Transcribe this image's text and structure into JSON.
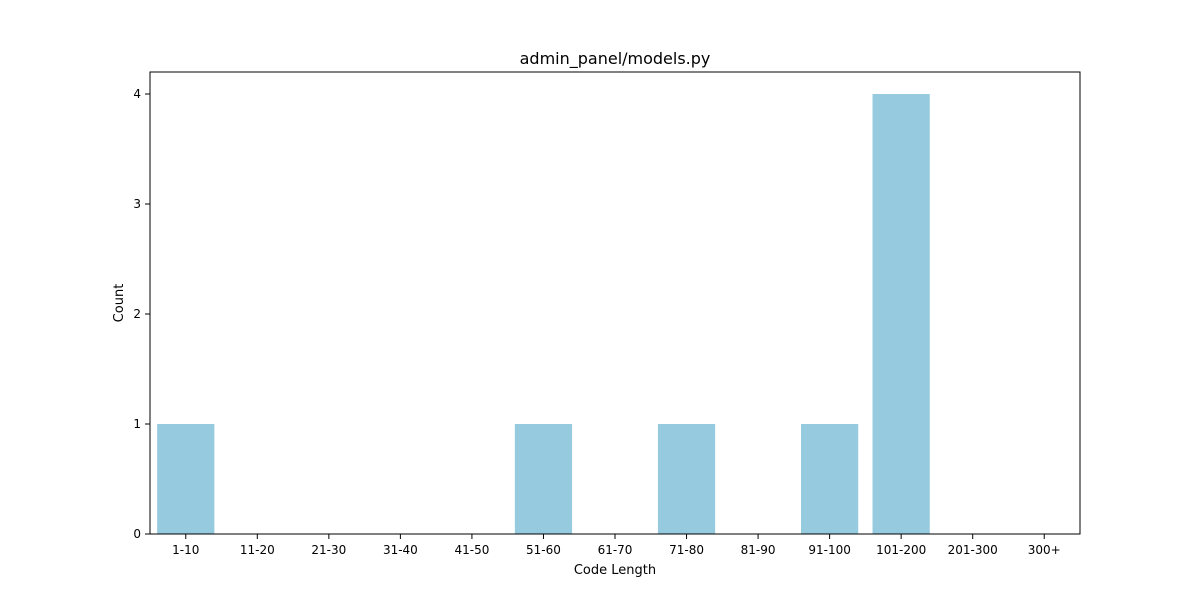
{
  "chart_data": {
    "type": "bar",
    "title": "admin_panel/models.py",
    "xlabel": "Code Length",
    "ylabel": "Count",
    "categories": [
      "1-10",
      "11-20",
      "21-30",
      "31-40",
      "41-50",
      "51-60",
      "61-70",
      "71-80",
      "81-90",
      "91-100",
      "101-200",
      "201-300",
      "300+"
    ],
    "values": [
      1,
      0,
      0,
      0,
      0,
      1,
      0,
      1,
      0,
      1,
      4,
      0,
      0
    ],
    "yticks": [
      0,
      1,
      2,
      3,
      4
    ],
    "ylim": [
      0,
      4.2
    ],
    "grid": false,
    "bar_color": "#96cadf"
  }
}
